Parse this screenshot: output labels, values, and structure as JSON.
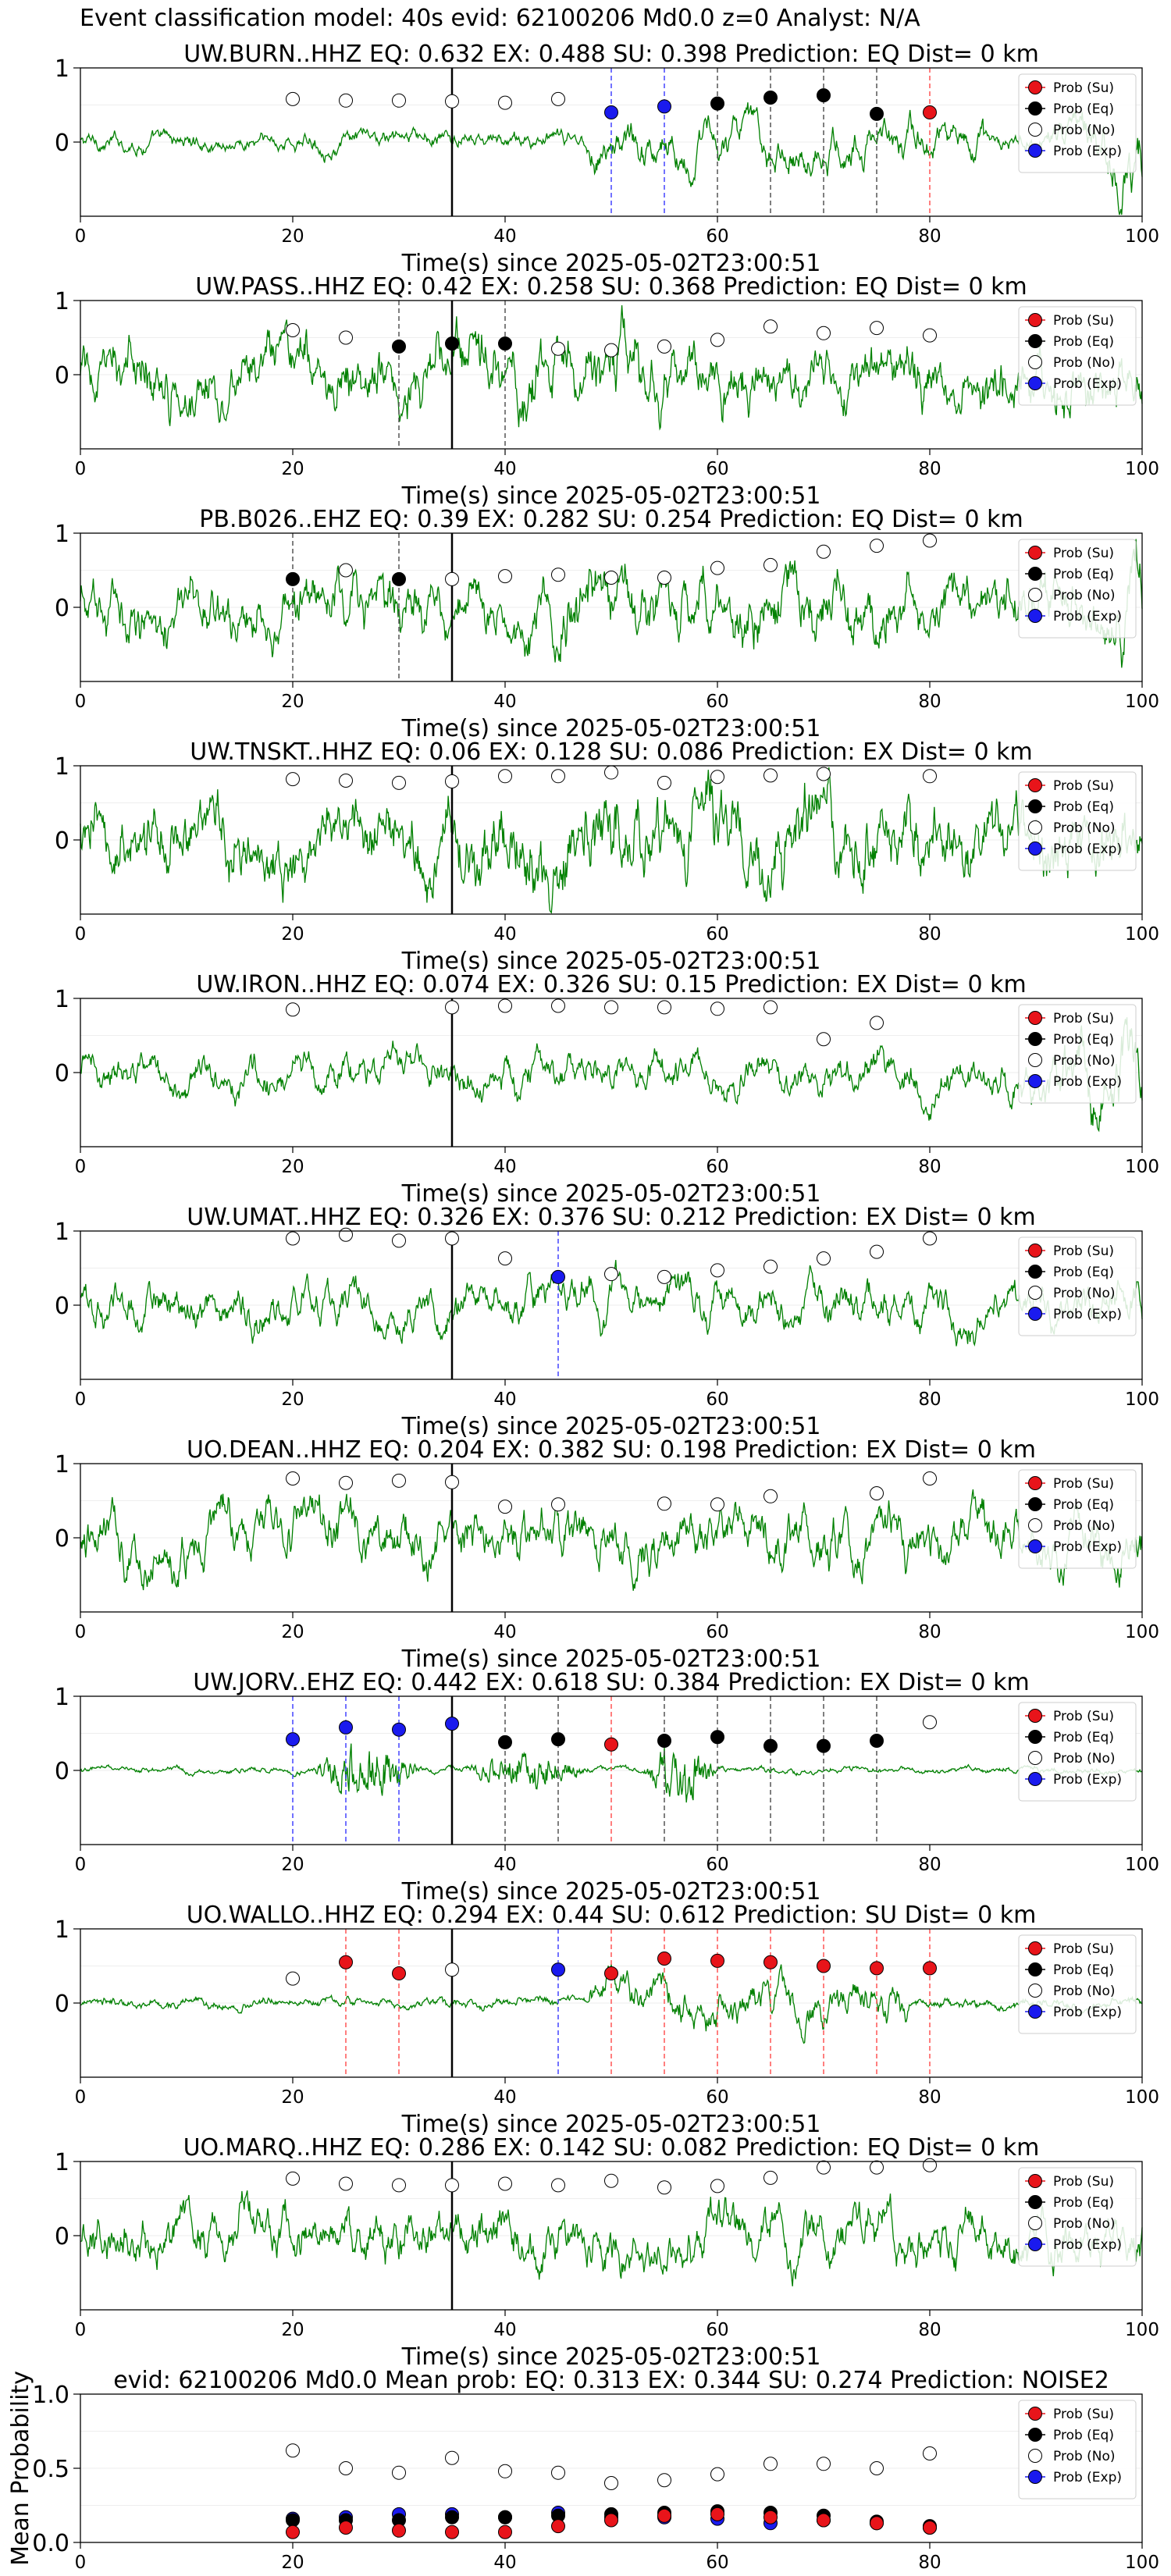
{
  "figure": {
    "suptitle": "Event classification model: 40s evid: 62100206 Md0.0 z=0 Analyst: N/A"
  },
  "style": {
    "trace_color": "#008000",
    "su_color": "#e8141a",
    "eq_color": "#000000",
    "no_color": "#ffffff",
    "exp_color": "#1a1aee",
    "su_line_color": "#ff5555",
    "eq_line_color": "#555555",
    "exp_line_color": "#4444ff",
    "origin_line_color": "#000000"
  },
  "legend_labels": [
    "Prob (Su)",
    "Prob (Eq)",
    "Prob (No)",
    "Prob (Exp)"
  ],
  "chart_data": [
    {
      "type": "line",
      "station": "UW.BURN..HHZ",
      "title": "UW.BURN..HHZ   EQ: 0.632  EX: 0.488  SU: 0.398   Prediction: EQ    Dist= 0 km",
      "xlabel": "Time(s) since 2025-05-02T23:00:51",
      "xlim": [
        0,
        100
      ],
      "ylim": [
        -1,
        1
      ],
      "yticks": [
        "1",
        "0"
      ],
      "xticks": [
        "0",
        "20",
        "40",
        "60",
        "80",
        "100"
      ],
      "legend_position": "top-right",
      "origin_time": 35,
      "amp": 0.18,
      "noise": 0.05,
      "burst": [
        48,
        85,
        0.25
      ],
      "tail": [
        90,
        100,
        0.7
      ],
      "points": [
        [
          20,
          0.58,
          "no"
        ],
        [
          25,
          0.56,
          "no"
        ],
        [
          30,
          0.56,
          "no"
        ],
        [
          35,
          0.55,
          "no"
        ],
        [
          40,
          0.53,
          "no"
        ],
        [
          45,
          0.58,
          "no"
        ],
        [
          50,
          0.4,
          "exp"
        ],
        [
          55,
          0.48,
          "exp"
        ],
        [
          60,
          0.52,
          "eq"
        ],
        [
          65,
          0.6,
          "eq"
        ],
        [
          70,
          0.63,
          "eq"
        ],
        [
          75,
          0.38,
          "eq"
        ],
        [
          80,
          0.4,
          "su"
        ]
      ]
    },
    {
      "type": "line",
      "station": "UW.PASS..HHZ",
      "title": "UW.PASS..HHZ   EQ: 0.42  EX: 0.258  SU: 0.368   Prediction: EQ    Dist= 0 km",
      "xlabel": "Time(s) since 2025-05-02T23:00:51",
      "xlim": [
        0,
        100
      ],
      "ylim": [
        -1,
        1
      ],
      "yticks": [
        "1",
        "0"
      ],
      "xticks": [
        "0",
        "20",
        "40",
        "60",
        "80",
        "100"
      ],
      "legend_position": "top-right",
      "origin_time": 35,
      "amp": 0.45,
      "noise": 0.25,
      "burst": [
        30,
        55,
        0.2
      ],
      "tail": [
        0,
        0,
        0
      ],
      "points": [
        [
          20,
          0.6,
          "no"
        ],
        [
          25,
          0.5,
          "no"
        ],
        [
          30,
          0.38,
          "eq"
        ],
        [
          35,
          0.42,
          "eq"
        ],
        [
          40,
          0.42,
          "eq"
        ],
        [
          45,
          0.35,
          "no"
        ],
        [
          50,
          0.33,
          "no"
        ],
        [
          55,
          0.38,
          "no"
        ],
        [
          60,
          0.47,
          "no"
        ],
        [
          65,
          0.65,
          "no"
        ],
        [
          70,
          0.56,
          "no"
        ],
        [
          75,
          0.63,
          "no"
        ],
        [
          80,
          0.53,
          "no"
        ]
      ]
    },
    {
      "type": "line",
      "station": "PB.B026..EHZ",
      "title": "PB.B026..EHZ   EQ: 0.39  EX: 0.282  SU: 0.254   Prediction: EQ    Dist= 0 km",
      "xlabel": "Time(s) since 2025-05-02T23:00:51",
      "xlim": [
        0,
        100
      ],
      "ylim": [
        -1,
        1
      ],
      "yticks": [
        "1",
        "0"
      ],
      "xticks": [
        "0",
        "20",
        "40",
        "60",
        "80",
        "100"
      ],
      "legend_position": "top-right",
      "origin_time": 35,
      "amp": 0.45,
      "noise": 0.25,
      "burst": [
        40,
        80,
        0.15
      ],
      "tail": [
        95,
        100,
        0.6
      ],
      "points": [
        [
          20,
          0.38,
          "eq"
        ],
        [
          25,
          0.5,
          "no"
        ],
        [
          30,
          0.38,
          "eq"
        ],
        [
          35,
          0.38,
          "no"
        ],
        [
          40,
          0.42,
          "no"
        ],
        [
          45,
          0.44,
          "no"
        ],
        [
          50,
          0.4,
          "no"
        ],
        [
          55,
          0.4,
          "no"
        ],
        [
          60,
          0.53,
          "no"
        ],
        [
          65,
          0.57,
          "no"
        ],
        [
          70,
          0.75,
          "no"
        ],
        [
          75,
          0.83,
          "no"
        ],
        [
          80,
          0.9,
          "no"
        ]
      ]
    },
    {
      "type": "line",
      "station": "UW.TNSKT..HHZ",
      "title": "UW.TNSKT..HHZ   EQ: 0.06  EX: 0.128  SU: 0.086   Prediction: EX    Dist= 0 km",
      "xlabel": "Time(s) since 2025-05-02T23:00:51",
      "xlim": [
        0,
        100
      ],
      "ylim": [
        -1,
        1
      ],
      "yticks": [
        "1",
        "0"
      ],
      "xticks": [
        "0",
        "20",
        "40",
        "60",
        "80",
        "100"
      ],
      "legend_position": "top-right",
      "origin_time": 35,
      "amp": 0.55,
      "noise": 0.35,
      "burst": [
        35,
        75,
        0.2
      ],
      "tail": [
        0,
        0,
        0
      ],
      "points": [
        [
          20,
          0.82,
          "no"
        ],
        [
          25,
          0.8,
          "no"
        ],
        [
          30,
          0.77,
          "no"
        ],
        [
          35,
          0.79,
          "no"
        ],
        [
          40,
          0.86,
          "no"
        ],
        [
          45,
          0.86,
          "no"
        ],
        [
          50,
          0.91,
          "no"
        ],
        [
          55,
          0.77,
          "no"
        ],
        [
          60,
          0.85,
          "no"
        ],
        [
          65,
          0.87,
          "no"
        ],
        [
          70,
          0.89,
          "no"
        ],
        [
          80,
          0.86,
          "no"
        ]
      ]
    },
    {
      "type": "line",
      "station": "UW.IRON..HHZ",
      "title": "UW.IRON..HHZ   EQ: 0.074  EX: 0.326  SU: 0.15   Prediction: EX    Dist= 0 km",
      "xlabel": "Time(s) since 2025-05-02T23:00:51",
      "xlim": [
        0,
        100
      ],
      "ylim": [
        -1,
        1
      ],
      "yticks": [
        "1",
        "0"
      ],
      "xticks": [
        "0",
        "20",
        "40",
        "60",
        "80",
        "100"
      ],
      "legend_position": "top-right",
      "origin_time": 35,
      "amp": 0.35,
      "noise": 0.12,
      "burst": [
        0,
        0,
        0
      ],
      "tail": [
        85,
        100,
        0.6
      ],
      "points": [
        [
          20,
          0.85,
          "no"
        ],
        [
          35,
          0.88,
          "no"
        ],
        [
          40,
          0.9,
          "no"
        ],
        [
          45,
          0.9,
          "no"
        ],
        [
          50,
          0.88,
          "no"
        ],
        [
          55,
          0.88,
          "no"
        ],
        [
          60,
          0.86,
          "no"
        ],
        [
          65,
          0.88,
          "no"
        ],
        [
          70,
          0.45,
          "no"
        ],
        [
          75,
          0.67,
          "no"
        ]
      ]
    },
    {
      "type": "line",
      "station": "UW.UMAT..HHZ",
      "title": "UW.UMAT..HHZ   EQ: 0.326  EX: 0.376  SU: 0.212   Prediction: EX    Dist= 0 km",
      "xlabel": "Time(s) since 2025-05-02T23:00:51",
      "xlim": [
        0,
        100
      ],
      "ylim": [
        -1,
        1
      ],
      "yticks": [
        "1",
        "0"
      ],
      "xticks": [
        "0",
        "20",
        "40",
        "60",
        "80",
        "100"
      ],
      "legend_position": "top-right",
      "origin_time": 35,
      "amp": 0.45,
      "noise": 0.08,
      "burst": [
        0,
        0,
        0
      ],
      "tail": [
        0,
        0,
        0
      ],
      "points": [
        [
          20,
          0.9,
          "no"
        ],
        [
          25,
          0.95,
          "no"
        ],
        [
          30,
          0.87,
          "no"
        ],
        [
          35,
          0.9,
          "no"
        ],
        [
          40,
          0.63,
          "no"
        ],
        [
          45,
          0.38,
          "exp"
        ],
        [
          50,
          0.42,
          "no"
        ],
        [
          55,
          0.38,
          "no"
        ],
        [
          60,
          0.47,
          "no"
        ],
        [
          65,
          0.52,
          "no"
        ],
        [
          70,
          0.63,
          "no"
        ],
        [
          75,
          0.72,
          "no"
        ],
        [
          80,
          0.9,
          "no"
        ]
      ]
    },
    {
      "type": "line",
      "station": "UO.DEAN..HHZ",
      "title": "UO.DEAN..HHZ   EQ: 0.204  EX: 0.382  SU: 0.198   Prediction: EX    Dist= 0 km",
      "xlabel": "Time(s) since 2025-05-02T23:00:51",
      "xlim": [
        0,
        100
      ],
      "ylim": [
        -1,
        1
      ],
      "yticks": [
        "1",
        "0"
      ],
      "xticks": [
        "0",
        "20",
        "40",
        "60",
        "80",
        "100"
      ],
      "legend_position": "top-right",
      "origin_time": 35,
      "amp": 0.6,
      "noise": 0.08,
      "burst": [
        0,
        0,
        0
      ],
      "tail": [
        0,
        0,
        0
      ],
      "points": [
        [
          20,
          0.8,
          "no"
        ],
        [
          25,
          0.74,
          "no"
        ],
        [
          30,
          0.77,
          "no"
        ],
        [
          35,
          0.75,
          "no"
        ],
        [
          40,
          0.42,
          "no"
        ],
        [
          45,
          0.45,
          "no"
        ],
        [
          55,
          0.46,
          "no"
        ],
        [
          60,
          0.45,
          "no"
        ],
        [
          65,
          0.56,
          "no"
        ],
        [
          75,
          0.6,
          "no"
        ],
        [
          80,
          0.8,
          "no"
        ]
      ]
    },
    {
      "type": "line",
      "station": "UW.JORV..EHZ",
      "title": "UW.JORV..EHZ   EQ: 0.442  EX: 0.618  SU: 0.384   Prediction: EX    Dist= 0 km",
      "xlabel": "Time(s) since 2025-05-02T23:00:51",
      "xlim": [
        0,
        100
      ],
      "ylim": [
        -1,
        1
      ],
      "yticks": [
        "1",
        "0"
      ],
      "xticks": [
        "0",
        "20",
        "40",
        "60",
        "80",
        "100"
      ],
      "legend_position": "top-right",
      "origin_time": 35,
      "amp": 0.05,
      "noise": 0.03,
      "burst": [
        0,
        0,
        0
      ],
      "tail": [
        0,
        0,
        0
      ],
      "events": [
        [
          22,
          32,
          0.8
        ],
        [
          36,
          48,
          0.5
        ],
        [
          53,
          60,
          0.95
        ]
      ],
      "points": [
        [
          20,
          0.42,
          "exp"
        ],
        [
          25,
          0.58,
          "exp"
        ],
        [
          30,
          0.55,
          "exp"
        ],
        [
          35,
          0.63,
          "exp"
        ],
        [
          40,
          0.38,
          "eq"
        ],
        [
          45,
          0.42,
          "eq"
        ],
        [
          50,
          0.35,
          "su"
        ],
        [
          55,
          0.4,
          "eq"
        ],
        [
          60,
          0.45,
          "eq"
        ],
        [
          65,
          0.33,
          "eq"
        ],
        [
          70,
          0.33,
          "eq"
        ],
        [
          75,
          0.4,
          "eq"
        ],
        [
          80,
          0.65,
          "no"
        ]
      ]
    },
    {
      "type": "line",
      "station": "UO.WALLO..HHZ",
      "title": "UO.WALLO..HHZ   EQ: 0.294  EX: 0.44  SU: 0.612   Prediction: SU    Dist= 0 km",
      "xlabel": "Time(s) since 2025-05-02T23:00:51",
      "xlim": [
        0,
        100
      ],
      "ylim": [
        -1,
        1
      ],
      "yticks": [
        "1",
        "0"
      ],
      "xticks": [
        "0",
        "20",
        "40",
        "60",
        "80",
        "100"
      ],
      "legend_position": "top-right",
      "origin_time": 35,
      "amp": 0.08,
      "noise": 0.05,
      "burst": [
        48,
        78,
        0.35
      ],
      "tail": [
        0,
        0,
        0
      ],
      "points": [
        [
          20,
          0.33,
          "no"
        ],
        [
          25,
          0.55,
          "su"
        ],
        [
          30,
          0.4,
          "su"
        ],
        [
          35,
          0.45,
          "no"
        ],
        [
          45,
          0.45,
          "exp"
        ],
        [
          50,
          0.4,
          "su"
        ],
        [
          55,
          0.6,
          "su"
        ],
        [
          60,
          0.57,
          "su"
        ],
        [
          65,
          0.55,
          "su"
        ],
        [
          70,
          0.5,
          "su"
        ],
        [
          75,
          0.47,
          "su"
        ],
        [
          80,
          0.47,
          "su"
        ]
      ]
    },
    {
      "type": "line",
      "station": "UO.MARQ..HHZ",
      "title": "UO.MARQ..HHZ   EQ: 0.286  EX: 0.142  SU: 0.082   Prediction: EQ    Dist= 0 km",
      "xlabel": "Time(s) since 2025-05-02T23:00:51",
      "xlim": [
        0,
        100
      ],
      "ylim": [
        -1,
        1
      ],
      "yticks": [
        "1",
        "0"
      ],
      "xticks": [
        "0",
        "20",
        "40",
        "60",
        "80",
        "100"
      ],
      "legend_position": "top-right",
      "origin_time": 35,
      "amp": 0.55,
      "noise": 0.1,
      "burst": [
        0,
        0,
        0
      ],
      "tail": [
        0,
        0,
        0
      ],
      "points": [
        [
          20,
          0.77,
          "no"
        ],
        [
          25,
          0.7,
          "no"
        ],
        [
          30,
          0.68,
          "no"
        ],
        [
          35,
          0.68,
          "no"
        ],
        [
          40,
          0.7,
          "no"
        ],
        [
          45,
          0.68,
          "no"
        ],
        [
          50,
          0.74,
          "no"
        ],
        [
          55,
          0.65,
          "no"
        ],
        [
          60,
          0.67,
          "no"
        ],
        [
          65,
          0.78,
          "no"
        ],
        [
          70,
          0.92,
          "no"
        ],
        [
          75,
          0.92,
          "no"
        ],
        [
          80,
          0.95,
          "no"
        ]
      ]
    },
    {
      "type": "scatter",
      "title": "evid: 62100206  Md0.0   Mean prob:   EQ: 0.313  EX: 0.344  SU: 0.274   Prediction: NOISE2",
      "ylabel": "Mean Probability",
      "xlim": [
        0,
        100
      ],
      "ylim": [
        0,
        1
      ],
      "yticks": [
        "1.0",
        "0.5",
        "0.0"
      ],
      "xticks": [
        "0",
        "20",
        "40",
        "60",
        "80",
        "100"
      ],
      "legend_position": "top-right",
      "series": [
        {
          "name": "Prob (No)",
          "kind": "no",
          "x": [
            20,
            25,
            30,
            35,
            40,
            45,
            50,
            55,
            60,
            65,
            70,
            75,
            80
          ],
          "values": [
            0.62,
            0.5,
            0.47,
            0.57,
            0.48,
            0.47,
            0.4,
            0.42,
            0.46,
            0.53,
            0.53,
            0.5,
            0.6
          ]
        },
        {
          "name": "Prob (Exp)",
          "kind": "exp",
          "x": [
            20,
            25,
            30,
            35,
            40,
            45,
            50,
            55,
            60,
            65,
            70,
            75,
            80
          ],
          "values": [
            0.16,
            0.17,
            0.19,
            0.19,
            0.17,
            0.2,
            0.17,
            0.17,
            0.16,
            0.13,
            0.15,
            0.13,
            0.1
          ]
        },
        {
          "name": "Prob (Eq)",
          "kind": "eq",
          "x": [
            20,
            25,
            30,
            35,
            40,
            45,
            50,
            55,
            60,
            65,
            70,
            75,
            80
          ],
          "values": [
            0.15,
            0.15,
            0.15,
            0.17,
            0.17,
            0.18,
            0.19,
            0.2,
            0.21,
            0.2,
            0.18,
            0.14,
            0.11
          ]
        },
        {
          "name": "Prob (Su)",
          "kind": "su",
          "x": [
            20,
            25,
            30,
            35,
            40,
            45,
            50,
            55,
            60,
            65,
            70,
            75,
            80
          ],
          "values": [
            0.07,
            0.1,
            0.08,
            0.07,
            0.07,
            0.11,
            0.15,
            0.18,
            0.19,
            0.17,
            0.15,
            0.13,
            0.1
          ]
        }
      ]
    }
  ]
}
